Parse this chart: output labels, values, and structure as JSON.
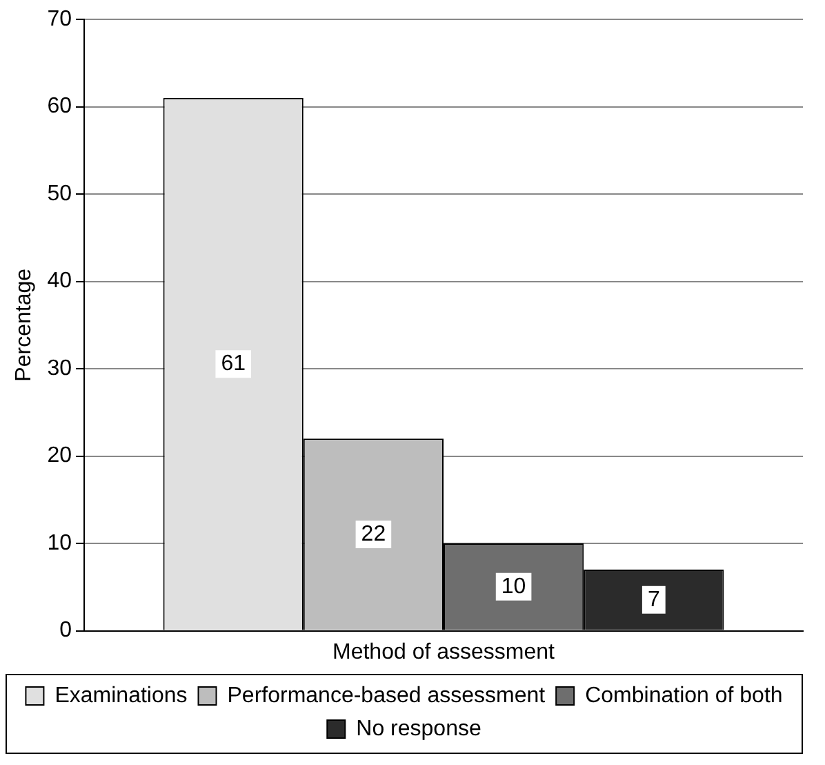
{
  "chart_data": {
    "type": "bar",
    "ylabel": "Percentage",
    "categories": [
      "Method of assessment"
    ],
    "series": [
      {
        "name": "Examinations",
        "color": "#e0e0e0",
        "values": [
          61
        ]
      },
      {
        "name": "Performance-based assessment",
        "color": "#bdbdbd",
        "values": [
          22
        ]
      },
      {
        "name": "Combination of both",
        "color": "#6e6e6e",
        "values": [
          10
        ]
      },
      {
        "name": "No response",
        "color": "#2b2b2b",
        "values": [
          7
        ]
      }
    ],
    "ylim": [
      0,
      70
    ],
    "yticks": [
      0,
      10,
      20,
      30,
      40,
      50,
      60,
      70
    ],
    "grid": "y",
    "legend": "bottom",
    "data_labels": true
  }
}
